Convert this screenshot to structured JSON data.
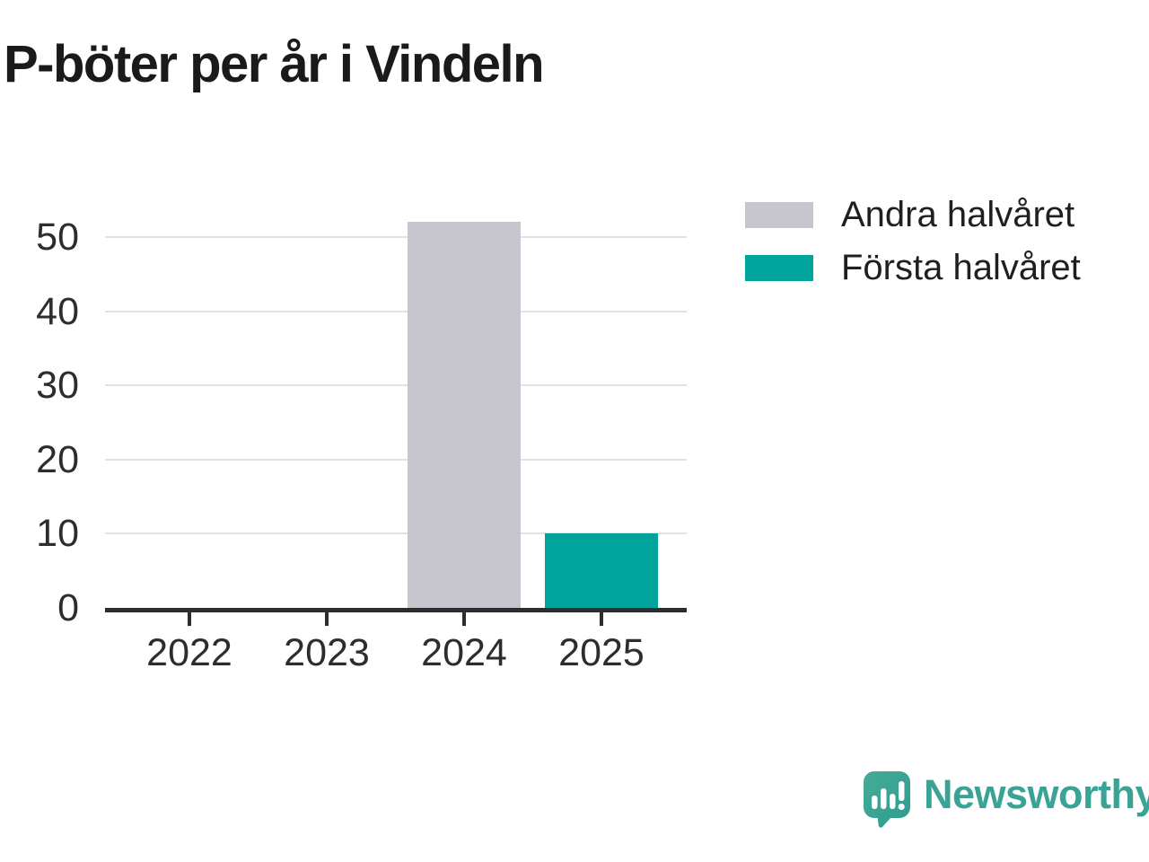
{
  "title": "P-böter per år i Vindeln",
  "chart_data": {
    "type": "bar",
    "stacked": true,
    "title": "P-böter per år i Vindeln",
    "categories": [
      "2022",
      "2023",
      "2024",
      "2025"
    ],
    "series": [
      {
        "name": "Andra halvåret",
        "color": "#c7c5ce",
        "values": [
          0,
          0,
          52,
          0
        ]
      },
      {
        "name": "Första halvåret",
        "color": "#00a49b",
        "values": [
          0,
          0,
          0,
          10
        ]
      }
    ],
    "xlabel": "",
    "ylabel": "",
    "ylim": [
      0,
      55
    ],
    "yticks": [
      0,
      10,
      20,
      30,
      40,
      50
    ],
    "grid": "horizontal",
    "legend_position": "right"
  },
  "branding": {
    "name": "Newsworthy",
    "logo_color": "#38a294",
    "text_color": "#3aa396"
  }
}
